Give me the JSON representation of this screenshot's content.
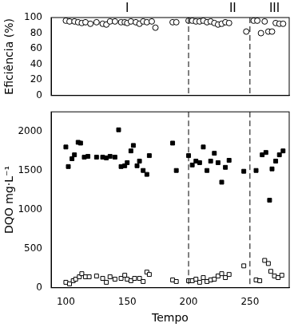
{
  "chart_data": [
    {
      "type": "scatter",
      "y_label": "Eficiência (%)",
      "xlim": [
        88,
        282
      ],
      "ylim": [
        0,
        100
      ],
      "yticks": [
        0,
        20,
        40,
        60,
        80,
        100
      ],
      "tick_labels": "y",
      "grid": false,
      "annotations": [
        {
          "text": "I",
          "x": 150
        },
        {
          "text": "II",
          "x": 236
        },
        {
          "text": "III",
          "x": 270
        }
      ],
      "vlines": [
        {
          "x": 200,
          "line_style": "dashed"
        },
        {
          "x": 250,
          "line_style": "dashed"
        }
      ],
      "series": [
        {
          "color": "#000000",
          "marker": "circle_open",
          "x": [
            100,
            103,
            107,
            110,
            113,
            116,
            120,
            125,
            130,
            133,
            136,
            140,
            145,
            148,
            150,
            153,
            157,
            160,
            163,
            166,
            170,
            173,
            187,
            190,
            200,
            203,
            206,
            209,
            212,
            215,
            218,
            221,
            224,
            227,
            230,
            233,
            247,
            253,
            256,
            259,
            262,
            265,
            268,
            271,
            274,
            277
          ],
          "values": [
            96,
            95,
            95,
            94,
            93,
            94,
            92,
            94,
            92,
            91,
            95,
            95,
            94,
            94,
            93,
            95,
            94,
            92,
            95,
            94,
            95,
            87,
            94,
            94,
            96,
            96,
            95,
            95,
            96,
            94,
            95,
            93,
            91,
            92,
            94,
            93,
            82,
            96,
            96,
            80,
            95,
            82,
            82,
            93,
            92,
            92
          ]
        }
      ]
    },
    {
      "type": "scatter",
      "x_label": "Tempo",
      "y_label": "DQO mg·L⁻¹",
      "xlim": [
        88,
        282
      ],
      "xticks": [
        100,
        150,
        200,
        250
      ],
      "ylim": [
        0,
        2250
      ],
      "yticks": [
        0,
        500,
        1000,
        1500,
        2000
      ],
      "grid": false,
      "vlines": [
        {
          "x": 200,
          "line_style": "dashed"
        },
        {
          "x": 250,
          "line_style": "dashed"
        }
      ],
      "series": [
        {
          "color": "#000000",
          "marker": "square",
          "x": [
            100,
            102,
            105,
            107,
            110,
            112,
            115,
            118,
            125,
            130,
            133,
            136,
            140,
            143,
            145,
            148,
            150,
            153,
            155,
            158,
            160,
            163,
            166,
            168,
            187,
            190,
            200,
            203,
            206,
            209,
            212,
            215,
            218,
            221,
            224,
            227,
            230,
            233,
            245,
            255,
            260,
            263,
            266,
            268,
            271,
            274,
            277
          ],
          "values": [
            1800,
            1550,
            1650,
            1700,
            1860,
            1850,
            1670,
            1680,
            1670,
            1670,
            1660,
            1680,
            1670,
            2020,
            1550,
            1560,
            1600,
            1750,
            1820,
            1560,
            1620,
            1500,
            1450,
            1690,
            1850,
            1500,
            1690,
            1570,
            1620,
            1600,
            1800,
            1500,
            1620,
            1720,
            1600,
            1350,
            1540,
            1630,
            1490,
            1500,
            1700,
            1730,
            1120,
            1520,
            1620,
            1700,
            1750
          ]
        },
        {
          "color": "#000000",
          "marker": "square_open",
          "x": [
            100,
            103,
            106,
            108,
            111,
            113,
            116,
            119,
            125,
            130,
            133,
            136,
            140,
            145,
            148,
            150,
            153,
            156,
            160,
            163,
            166,
            168,
            187,
            190,
            200,
            203,
            206,
            209,
            212,
            215,
            218,
            221,
            224,
            227,
            230,
            233,
            245,
            255,
            258,
            262,
            265,
            267,
            270,
            273,
            276
          ],
          "values": [
            70,
            50,
            90,
            110,
            140,
            180,
            140,
            140,
            150,
            120,
            70,
            140,
            110,
            120,
            160,
            110,
            90,
            120,
            120,
            80,
            200,
            170,
            100,
            80,
            90,
            90,
            110,
            70,
            130,
            80,
            100,
            110,
            150,
            180,
            130,
            170,
            280,
            100,
            90,
            350,
            310,
            210,
            150,
            130,
            160
          ]
        }
      ]
    }
  ]
}
